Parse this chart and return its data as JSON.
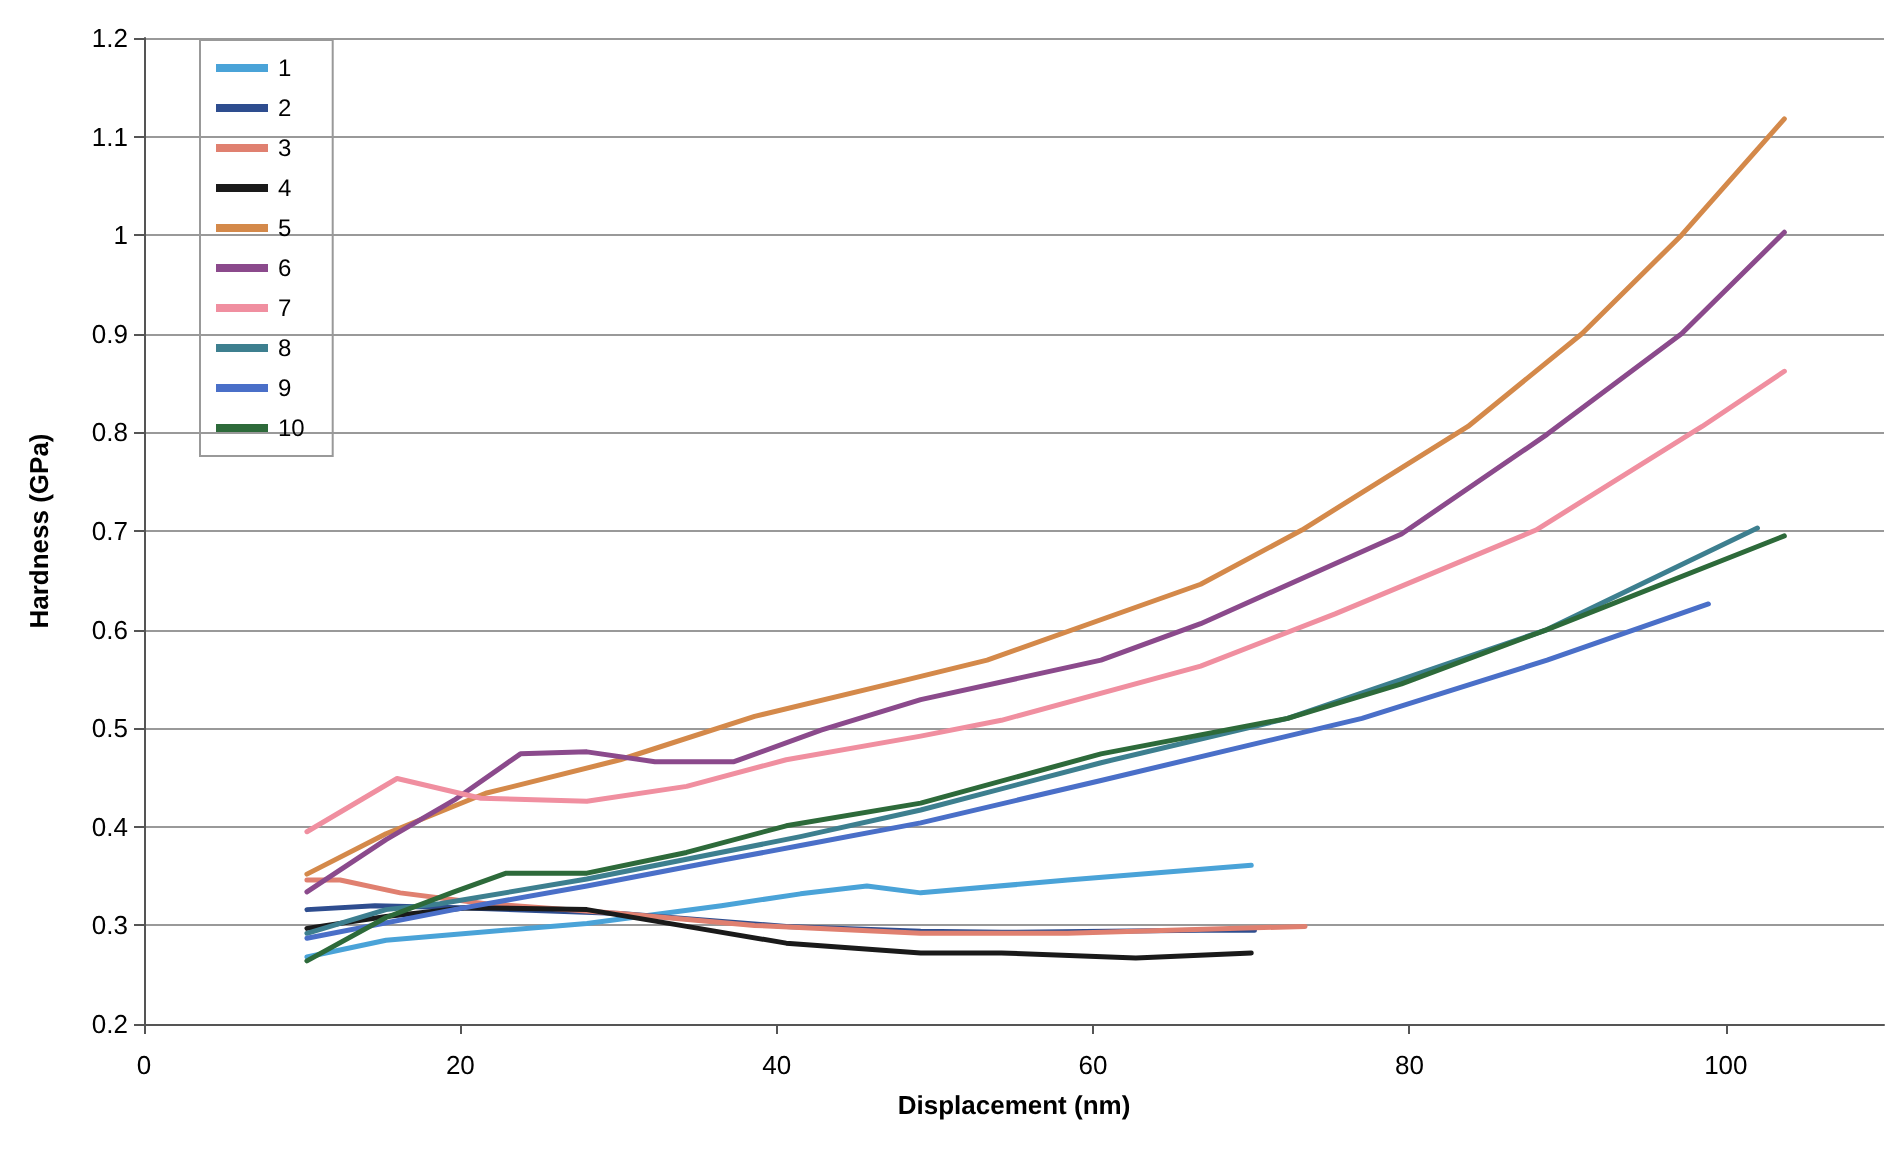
{
  "chart_data": {
    "type": "line",
    "xlabel": "Displacement (nm)",
    "ylabel": "Hardness (GPa)",
    "xlim": [
      0,
      110
    ],
    "xticks": [
      0,
      20,
      40,
      60,
      80,
      100
    ],
    "ylim": [
      0.2,
      1.2
    ],
    "yticks": [
      0.2,
      0.3,
      0.4,
      0.5,
      0.6,
      0.7,
      0.8,
      0.9,
      1,
      1.1,
      1.2
    ],
    "grid": "y",
    "legend": "top left",
    "marker": "none",
    "line_style": "solid",
    "series": [
      {
        "name": "1",
        "color": "#4aa3d8",
        "x": [
          10.3,
          15.3,
          28,
          36.5,
          41.5,
          45.7,
          49.1,
          58.4,
          70
        ],
        "values": [
          0.268,
          0.285,
          0.302,
          0.32,
          0.332,
          0.34,
          0.333,
          0.346,
          0.361
        ]
      },
      {
        "name": "2",
        "color": "#2e4d8f",
        "x": [
          10.3,
          14.6,
          20,
          30.1,
          40.6,
          49.1,
          54.2,
          66.8,
          70.2
        ],
        "values": [
          0.316,
          0.32,
          0.318,
          0.312,
          0.299,
          0.294,
          0.293,
          0.295,
          0.295
        ]
      },
      {
        "name": "3",
        "color": "#e08070",
        "x": [
          10.3,
          12.4,
          16.2,
          21.6,
          30.1,
          38.6,
          49.1,
          58.4,
          73.4
        ],
        "values": [
          0.346,
          0.346,
          0.333,
          0.322,
          0.312,
          0.3,
          0.292,
          0.292,
          0.299
        ]
      },
      {
        "name": "4",
        "color": "#1a1a1a",
        "x": [
          10.3,
          15.3,
          20.4,
          28,
          34.3,
          40.6,
          49.1,
          54.2,
          62.7,
          70
        ],
        "values": [
          0.297,
          0.309,
          0.318,
          0.316,
          0.299,
          0.282,
          0.272,
          0.272,
          0.267,
          0.272
        ]
      },
      {
        "name": "5",
        "color": "#d4894a",
        "x": [
          10.3,
          15.3,
          21.6,
          30.1,
          38.6,
          48.2,
          53.3,
          66.8,
          73.2,
          83.7,
          90.9,
          97.2,
          103.7
        ],
        "values": [
          0.352,
          0.393,
          0.434,
          0.468,
          0.512,
          0.549,
          0.569,
          0.646,
          0.701,
          0.806,
          0.9,
          1.0,
          1.118
        ]
      },
      {
        "name": "6",
        "color": "#8b4a8c",
        "x": [
          10.3,
          15.3,
          19.6,
          23.8,
          28,
          32.3,
          37.3,
          42.8,
          49.1,
          60.5,
          66.8,
          79.5,
          88.7,
          97.2,
          103.7
        ],
        "values": [
          0.334,
          0.387,
          0.427,
          0.474,
          0.476,
          0.466,
          0.466,
          0.498,
          0.529,
          0.569,
          0.606,
          0.697,
          0.798,
          0.9,
          1.003
        ]
      },
      {
        "name": "7",
        "color": "#f08fa0",
        "x": [
          10.3,
          16,
          21.3,
          28,
          34.3,
          40.6,
          49.1,
          54.2,
          66.8,
          75.3,
          88,
          98.5,
          103.7
        ],
        "values": [
          0.395,
          0.449,
          0.429,
          0.426,
          0.441,
          0.468,
          0.492,
          0.508,
          0.563,
          0.616,
          0.701,
          0.806,
          0.862
        ]
      },
      {
        "name": "8",
        "color": "#3d7f8f",
        "x": [
          10.3,
          15.3,
          18.7,
          28,
          41.5,
          49.1,
          60.5,
          72.3,
          88.7,
          102
        ],
        "values": [
          0.292,
          0.316,
          0.322,
          0.347,
          0.39,
          0.417,
          0.465,
          0.51,
          0.6,
          0.703
        ]
      },
      {
        "name": "9",
        "color": "#4a6fc8",
        "x": [
          10.3,
          19.6,
          28,
          36.5,
          41.5,
          49.1,
          60.5,
          77,
          88.7,
          98.9
        ],
        "values": [
          0.287,
          0.316,
          0.34,
          0.366,
          0.381,
          0.404,
          0.447,
          0.51,
          0.569,
          0.626
        ]
      },
      {
        "name": "10",
        "color": "#2d6a3a",
        "x": [
          10.3,
          15.3,
          19.6,
          22.9,
          28,
          34.3,
          40.6,
          49.1,
          60.5,
          72.3,
          79.5,
          88.7,
          103.7
        ],
        "values": [
          0.264,
          0.308,
          0.334,
          0.353,
          0.353,
          0.374,
          0.401,
          0.424,
          0.474,
          0.51,
          0.545,
          0.6,
          0.695
        ]
      }
    ]
  }
}
